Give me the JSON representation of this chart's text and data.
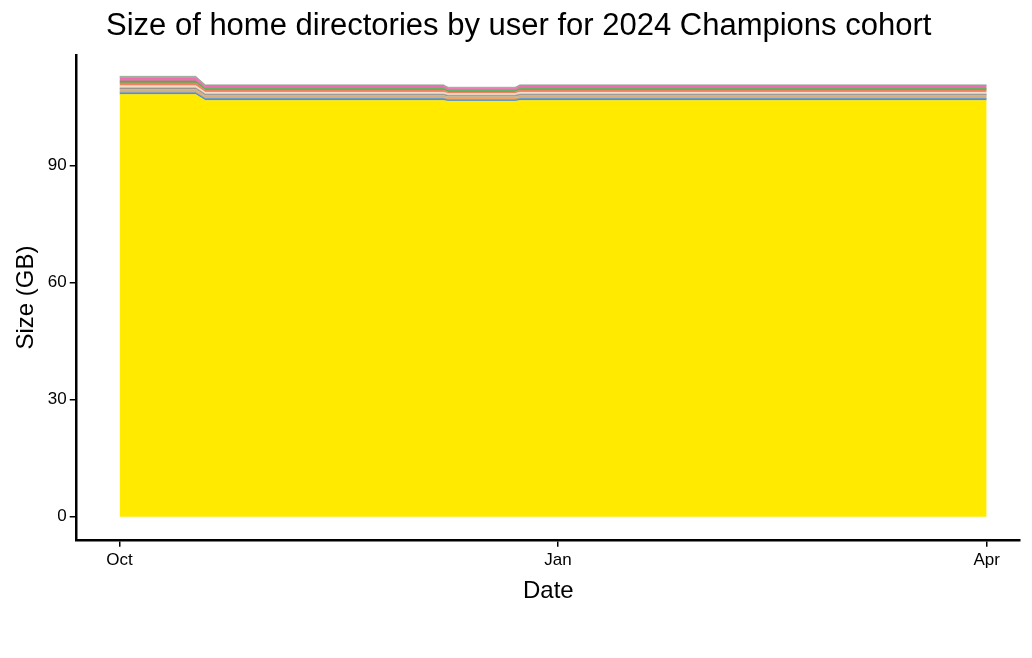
{
  "chart_data": {
    "type": "area",
    "stacked": true,
    "title": "Size of home directories by user for 2024 Champions cohort",
    "xlabel": "Date",
    "ylabel": "Size (GB)",
    "x": [
      "2024-10-01",
      "2024-10-17",
      "2024-10-19",
      "2024-12-08",
      "2024-12-09",
      "2024-12-23",
      "2024-12-24",
      "2025-04-01"
    ],
    "xlim": [
      "2024-09-22",
      "2025-04-08"
    ],
    "xticks": [
      {
        "value": "2024-10-01",
        "label": "Oct"
      },
      {
        "value": "2025-01-01",
        "label": "Jan"
      },
      {
        "value": "2025-04-01",
        "label": "Apr"
      }
    ],
    "ylim": [
      -5.9,
      118.3
    ],
    "yticks": [
      0,
      30,
      60,
      90
    ],
    "grid": false,
    "legend": false,
    "series": [
      {
        "color": "#ffea00",
        "values": [
          108.2,
          108.2,
          106.7,
          106.7,
          106.5,
          106.5,
          106.7,
          106.7
        ]
      },
      {
        "color": "#4a90d9",
        "values": [
          0.5,
          0.5,
          0.5,
          0.5,
          0.4,
          0.4,
          0.5,
          0.5
        ]
      },
      {
        "color": "#f4a460",
        "values": [
          0.4,
          0.4,
          0.4,
          0.4,
          0.4,
          0.4,
          0.4,
          0.4
        ]
      },
      {
        "color": "#c8b48c",
        "values": [
          0.5,
          0.5,
          0.4,
          0.4,
          0.4,
          0.4,
          0.4,
          0.4
        ]
      },
      {
        "color": "#8c8c8c",
        "values": [
          0.3,
          0.3,
          0.3,
          0.3,
          0.3,
          0.3,
          0.3,
          0.3
        ]
      },
      {
        "color": "#eedcc8",
        "values": [
          0.6,
          0.6,
          0.5,
          0.5,
          0.5,
          0.5,
          0.5,
          0.5
        ]
      },
      {
        "color": "#f08060",
        "values": [
          0.7,
          0.7,
          0.6,
          0.6,
          0.4,
          0.4,
          0.6,
          0.6
        ]
      },
      {
        "color": "#50b050",
        "values": [
          0.5,
          0.5,
          0.4,
          0.4,
          0.4,
          0.4,
          0.4,
          0.4
        ]
      },
      {
        "color": "#f06eb4",
        "values": [
          0.8,
          0.8,
          0.6,
          0.6,
          0.5,
          0.5,
          0.6,
          0.6
        ]
      },
      {
        "color": "#90a890",
        "values": [
          0.4,
          0.4,
          0.3,
          0.3,
          0.3,
          0.3,
          0.3,
          0.3
        ]
      }
    ]
  }
}
